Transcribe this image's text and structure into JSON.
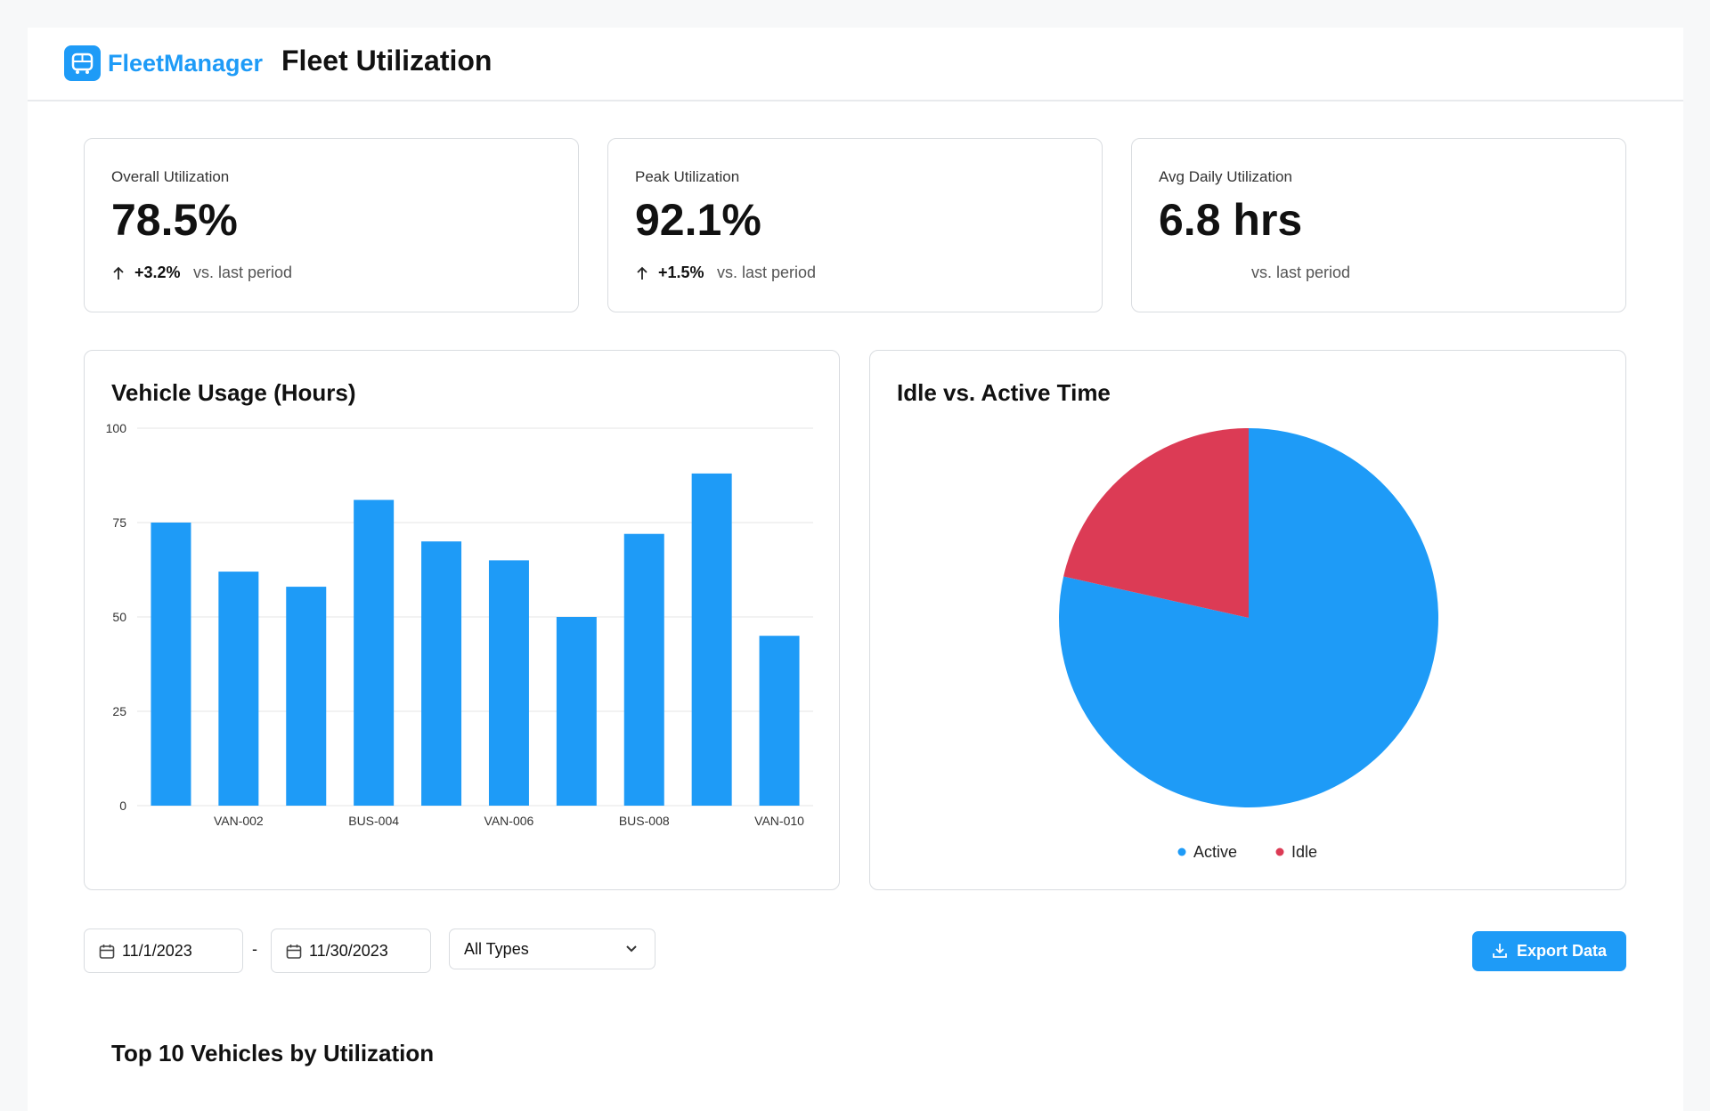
{
  "header": {
    "brand": "FleetManager",
    "title": "Fleet Utilization"
  },
  "kpis": [
    {
      "label": "Overall Utilization",
      "value": "78.5%",
      "change": "+3.2%",
      "comparison": "vs. last period"
    },
    {
      "label": "Peak Utilization",
      "value": "92.1%",
      "change": "+1.5%",
      "comparison": "vs. last period"
    },
    {
      "label": "Avg Daily Utilization",
      "value": "6.8 hrs",
      "comparison": "vs. last period"
    }
  ],
  "chart_data": [
    {
      "type": "bar",
      "title": "Vehicle Usage (Hours)",
      "categories": [
        null,
        "VAN-002",
        null,
        "BUS-004",
        null,
        "VAN-006",
        null,
        "BUS-008",
        null,
        "VAN-010"
      ],
      "values": [
        75,
        62,
        58,
        81,
        70,
        65,
        50,
        72,
        88,
        45
      ],
      "color": "#1e9bf7",
      "ylim": [
        0,
        100
      ],
      "yticks": [
        0,
        25,
        50,
        75,
        100
      ],
      "grid": true
    },
    {
      "type": "pie",
      "title": "Idle vs. Active Time",
      "categories": [
        "Active",
        "Idle"
      ],
      "values": [
        78.5,
        21.5
      ],
      "colors": [
        "#1e9bf7",
        "#dc3b55"
      ]
    }
  ],
  "filters": {
    "start_date": "11/1/2023",
    "separator": "-",
    "end_date": "11/30/2023",
    "type_filter": "All Types",
    "export": "Export Data"
  },
  "table": {
    "title": "Top 10 Vehicles by Utilization"
  }
}
